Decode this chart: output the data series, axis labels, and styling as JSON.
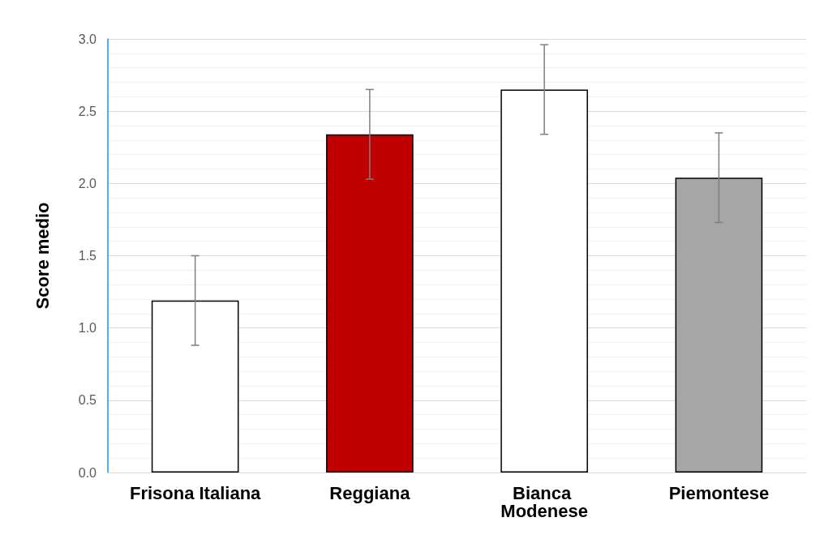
{
  "chart_data": {
    "type": "bar",
    "ylabel": "Score medio",
    "categories": [
      "Frisona Italiana",
      "Reggiana",
      "Bianca Modenese",
      "Piemontese"
    ],
    "values": [
      1.19,
      2.34,
      2.65,
      2.04
    ],
    "errors": [
      0.31,
      0.31,
      0.31,
      0.31
    ],
    "colors": [
      "#ffffff",
      "#c00000",
      "#ffffff",
      "#a6a6a6"
    ],
    "ylim": [
      0,
      3
    ],
    "yticks": [
      {
        "value": 0,
        "label": "0.0"
      },
      0.5,
      {
        "value": 1,
        "label": "1.0"
      },
      1.5,
      {
        "value": 2,
        "label": "2.0"
      },
      2.5,
      {
        "value": 3,
        "label": "3.0"
      }
    ],
    "grid": "y"
  }
}
